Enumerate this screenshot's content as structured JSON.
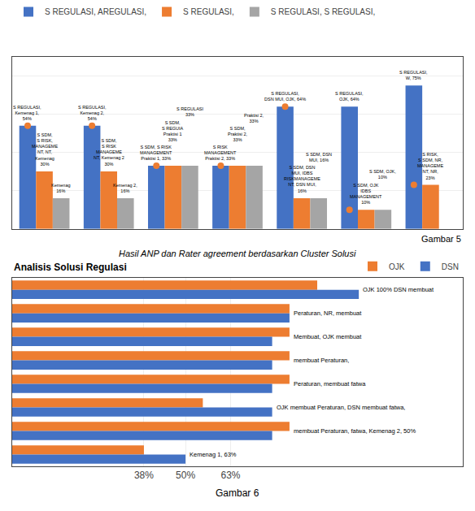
{
  "chart_data": [
    {
      "type": "bar",
      "title": "Gambar 5",
      "subtitle": "Hasil ANP dan Rater agreement berdasarkan Cluster Solusi",
      "categories": [
        null,
        null,
        null,
        null,
        null,
        null,
        null
      ],
      "series": [
        {
          "name": "S REGULASI, AREGULASI,",
          "color": "#4472C4",
          "values": [
            54,
            54,
            33,
            33,
            64,
            64,
            75
          ],
          "value_labels": [
            "S REGULASI,\nKemenag 1,\n54%",
            "S REGULASI,\nKemenag 2,\n54%",
            "S SDM, S RISK\nMANAGEMENT\nPraktisi 1, 33%",
            "S RISK\nMANAGEMENT\nPraktisi 2, 33%",
            "S REGULASI,\nDSN MUI, OJK, 64%",
            "S REGULASI,\nOJK, 64%",
            "S REGULASI,\nW, 75%"
          ]
        },
        {
          "name": "S REGULASI,",
          "color": "#ED7D31",
          "values": [
            30,
            30,
            33,
            33,
            16,
            10,
            23
          ],
          "value_labels": [
            "S SDM,\nS RISK,\nMANAGEME\nNT, NT,\nKemenag\n30%",
            "S SDM,\nS RISK\nMANAGEME\nNT, Kemenag 2\n30%",
            "S SDM,\nS REGUIA\nPraktisi 1\n33%",
            "S SDM,\nPraktisi 2,\n33%",
            "S SDM, DSN\nMUI, IDBS\nRISKMANAGEME\nNT, DSN MUI,\n16%",
            "S SDM, OJK\nIDBS\nMANAGEMENT\n10%",
            "S RISK,\nS SDM, NR,\nMANAGEME\nNT, NR,\n23%"
          ]
        },
        {
          "name": "S REGULASI, S REGULASI,",
          "color": "#A5A5A5",
          "values": [
            16,
            16,
            33,
            33,
            16,
            10,
            0
          ],
          "value_labels": [
            "Kemenag\n16%",
            "Kemenag 2,\n16%",
            "S REGULASI\n33%",
            "Praktisi 2,\n33%",
            "S SDM, DSN\nMUI, 16%",
            "S SDM, OJK,\n10%",
            null
          ]
        },
        {
          "type": "scatter",
          "marker": "circle",
          "color": "#ED7D31",
          "values": [
            54,
            54,
            33,
            33,
            64,
            10,
            23
          ]
        }
      ],
      "ylim": [
        0,
        90
      ],
      "yticks": [
        20,
        40,
        60,
        80
      ],
      "grid": true,
      "tick_labels": false,
      "legend": "upper left"
    },
    {
      "type": "bar",
      "orientation": "horizontal",
      "title": "Analisis Solusi Regulasi",
      "subtitle": "Gambar 6",
      "categories": [
        null,
        null,
        null,
        null,
        null,
        null,
        null,
        null
      ],
      "series": [
        {
          "name": "OJK",
          "color": "#ED7D31",
          "values": [
            88,
            80,
            80,
            80,
            80,
            55,
            80,
            38
          ]
        },
        {
          "name": "DSN",
          "color": "#4472C4",
          "values": [
            100,
            80,
            75,
            75,
            75,
            75,
            75,
            50
          ]
        }
      ],
      "annotations": [
        "OJK 100%\nDSN membuat",
        "Peraturan, NR,\nmembuat",
        "Membuat,\nOJK membuat",
        "membuat\nPeraturan,",
        "Peraturan, membuat fatwa",
        "OJK\nmembuat\nPeraturan,\nDSN\nmembuat\nfatwa,",
        "membuat\nPeraturan,\nfatwa,\nKemenag 2,\n50%",
        "Kemenag 1,\n63%"
      ],
      "xlim": [
        0,
        130
      ],
      "xticks": [
        {
          "value": 38,
          "label": "38%"
        },
        {
          "value": 50,
          "label": "50%"
        },
        {
          "value": 63,
          "label": "63%"
        }
      ],
      "grid": true,
      "tick_labels": "x",
      "legend": "upper right"
    }
  ]
}
